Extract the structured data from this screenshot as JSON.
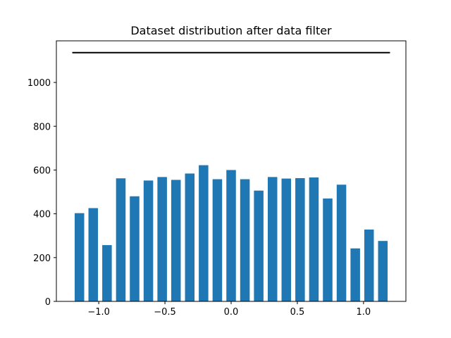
{
  "chart_data": {
    "type": "bar",
    "title": "Dataset distribution after data filter",
    "xlabel": "",
    "ylabel": "",
    "xlim": [
      -1.32,
      1.32
    ],
    "ylim": [
      0,
      1190
    ],
    "grid": false,
    "bar_color": "#1f77b4",
    "bar_width": 0.072,
    "x": [
      -1.1458,
      -1.0417,
      -0.9375,
      -0.8333,
      -0.7292,
      -0.625,
      -0.5208,
      -0.4167,
      -0.3125,
      -0.2083,
      -0.1042,
      0.0,
      0.1042,
      0.2083,
      0.3125,
      0.4167,
      0.5208,
      0.625,
      0.7292,
      0.8333,
      0.9375,
      1.0417,
      1.1458
    ],
    "values": [
      403,
      426,
      257,
      562,
      480,
      552,
      568,
      555,
      584,
      622,
      558,
      600,
      558,
      506,
      568,
      561,
      563,
      566,
      470,
      533,
      242,
      328,
      276
    ],
    "reference_line": {
      "y": 1136,
      "x_from": -1.2,
      "x_to": 1.2,
      "color": "#000000"
    },
    "x_ticks": [
      -1.0,
      -0.5,
      0.0,
      0.5,
      1.0
    ],
    "x_tick_labels": [
      "−1.0",
      "−0.5",
      "0.0",
      "0.5",
      "1.0"
    ],
    "y_ticks": [
      0,
      200,
      400,
      600,
      800,
      1000
    ],
    "y_tick_labels": [
      "0",
      "200",
      "400",
      "600",
      "800",
      "1000"
    ]
  }
}
